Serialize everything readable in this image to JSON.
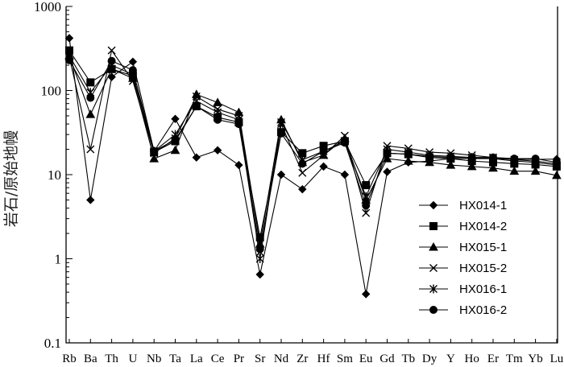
{
  "chart_data": {
    "type": "line",
    "yscale": "log",
    "ylim": [
      0.1,
      1000
    ],
    "ylabel": "岩石/原始地幔",
    "xlabel": "",
    "y_ticks": [
      "0.1",
      "1",
      "10",
      "100",
      "1000"
    ],
    "categories": [
      "Rb",
      "Ba",
      "Th",
      "U",
      "Nb",
      "Ta",
      "La",
      "Ce",
      "Pr",
      "Sr",
      "Nd",
      "Zr",
      "Hf",
      "Sm",
      "Eu",
      "Gd",
      "Tb",
      "Dy",
      "Y",
      "Ho",
      "Er",
      "Tm",
      "Yb",
      "Lu"
    ],
    "legend_position": "right",
    "series": [
      {
        "name": "HX014-1",
        "marker": "diamond",
        "values": [
          420,
          5,
          145,
          220,
          19,
          46,
          16,
          19.5,
          13,
          0.65,
          10,
          6.7,
          12.5,
          10,
          0.38,
          10.8,
          14,
          14.5,
          15.5,
          15.5,
          15.5,
          15.2,
          15.2,
          15.3
        ]
      },
      {
        "name": "HX014-2",
        "marker": "square",
        "values": [
          300,
          125,
          180,
          150,
          18.5,
          25,
          65,
          48,
          42,
          1.8,
          32,
          18,
          22,
          25,
          7.5,
          18,
          17.5,
          16,
          15.5,
          14.5,
          14,
          13.5,
          13.2,
          12.5
        ]
      },
      {
        "name": "HX015-1",
        "marker": "triangle",
        "values": [
          260,
          52,
          180,
          140,
          15.5,
          19.5,
          90,
          72,
          55,
          1.5,
          45,
          14,
          17,
          27,
          5,
          15.5,
          14.5,
          14,
          13,
          12.5,
          12,
          11,
          11,
          9.8
        ]
      },
      {
        "name": "HX015-2",
        "marker": "x",
        "values": [
          250,
          20,
          300,
          130,
          18,
          27,
          85,
          60,
          50,
          1.2,
          40,
          10.5,
          17,
          29,
          3.5,
          22,
          20.5,
          18.5,
          18,
          17,
          16,
          15,
          14.5,
          13.5
        ]
      },
      {
        "name": "HX016-1",
        "marker": "asterisk",
        "values": [
          260,
          95,
          200,
          155,
          19,
          30,
          75,
          55,
          45,
          1.0,
          42,
          15,
          19,
          25,
          5.5,
          20,
          18.5,
          17,
          16.5,
          16,
          15.5,
          14.5,
          14,
          13
        ]
      },
      {
        "name": "HX016-2",
        "marker": "circle",
        "values": [
          230,
          82,
          225,
          175,
          19,
          26,
          65,
          45,
          40,
          1.3,
          31,
          13.5,
          19,
          24,
          4.3,
          18,
          17.5,
          16.5,
          16,
          16,
          16,
          15.5,
          15.5,
          14
        ]
      }
    ]
  }
}
